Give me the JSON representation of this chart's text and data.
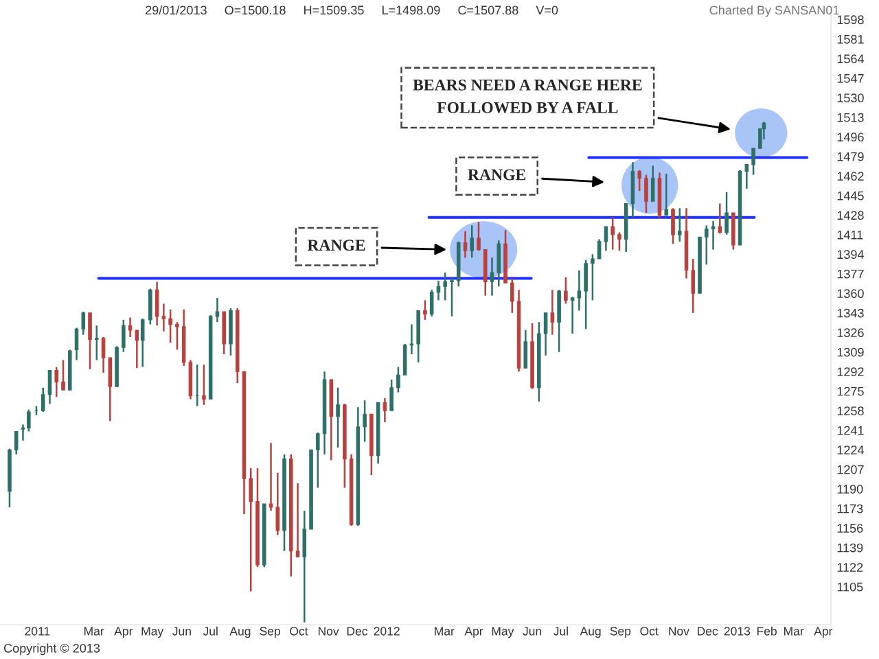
{
  "chart_data": {
    "type": "candlestick",
    "subtitle": "29/01/2013     O=1500.18     H=1509.35     L=1498.09     C=1507.88     V=0",
    "annotations": [
      "Charted By SANSAN01",
      "Copyright © 2013",
      "RANGE",
      "RANGE",
      "BEARS NEED A RANGE HERE\nFOLLOWED BY A FALL"
    ],
    "x": [
      "2010-12-03",
      "2010-12-10",
      "2010-12-17",
      "2010-12-23",
      "2010-12-31",
      "2011-01-07",
      "2011-01-14",
      "2011-01-21",
      "2011-01-28",
      "2011-02-04",
      "2011-02-11",
      "2011-02-18",
      "2011-02-25",
      "2011-03-04",
      "2011-03-11",
      "2011-03-18",
      "2011-03-25",
      "2011-04-01",
      "2011-04-08",
      "2011-04-15",
      "2011-04-21",
      "2011-04-29",
      "2011-05-06",
      "2011-05-13",
      "2011-05-20",
      "2011-05-27",
      "2011-06-03",
      "2011-06-10",
      "2011-06-17",
      "2011-06-24",
      "2011-07-01",
      "2011-07-08",
      "2011-07-15",
      "2011-07-22",
      "2011-07-29",
      "2011-08-05",
      "2011-08-12",
      "2011-08-19",
      "2011-08-26",
      "2011-09-02",
      "2011-09-09",
      "2011-09-16",
      "2011-09-23",
      "2011-09-30",
      "2011-10-07",
      "2011-10-14",
      "2011-10-21",
      "2011-10-28",
      "2011-11-04",
      "2011-11-11",
      "2011-11-18",
      "2011-11-25",
      "2011-12-02",
      "2011-12-09",
      "2011-12-16",
      "2011-12-23",
      "2011-12-30",
      "2012-01-06",
      "2012-01-13",
      "2012-01-20",
      "2012-01-27",
      "2012-02-03",
      "2012-02-10",
      "2012-02-17",
      "2012-02-24",
      "2012-03-02",
      "2012-03-09",
      "2012-03-16",
      "2012-03-23",
      "2012-03-30",
      "2012-04-06",
      "2012-04-13",
      "2012-04-20",
      "2012-04-27",
      "2012-05-04",
      "2012-05-11",
      "2012-05-18",
      "2012-05-25",
      "2012-06-01",
      "2012-06-08",
      "2012-06-15",
      "2012-06-22",
      "2012-06-29",
      "2012-07-06",
      "2012-07-13",
      "2012-07-20",
      "2012-07-27",
      "2012-08-03",
      "2012-08-10",
      "2012-08-17",
      "2012-08-24",
      "2012-08-31",
      "2012-09-07",
      "2012-09-14",
      "2012-09-21",
      "2012-09-28",
      "2012-10-05",
      "2012-10-12",
      "2012-10-19",
      "2012-10-26",
      "2012-11-02",
      "2012-11-09",
      "2012-11-16",
      "2012-11-23",
      "2012-11-30",
      "2012-12-07",
      "2012-12-14",
      "2012-12-21",
      "2012-12-28",
      "2013-01-04",
      "2013-01-11",
      "2013-01-18",
      "2013-01-25",
      "2013-01-29"
    ],
    "ohlc": [
      [
        1188,
        1225,
        1174,
        1224
      ],
      [
        1224,
        1240,
        1220,
        1240
      ],
      [
        1242,
        1246,
        1232,
        1243
      ],
      [
        1243,
        1259,
        1240,
        1257
      ],
      [
        1258,
        1262,
        1254,
        1258
      ],
      [
        1258,
        1278,
        1257,
        1272
      ],
      [
        1272,
        1293,
        1264,
        1293
      ],
      [
        1293,
        1296,
        1270,
        1283
      ],
      [
        1283,
        1302,
        1276,
        1276
      ],
      [
        1276,
        1311,
        1276,
        1310
      ],
      [
        1311,
        1330,
        1302,
        1329
      ],
      [
        1329,
        1344,
        1324,
        1343
      ],
      [
        1343,
        1343,
        1294,
        1320
      ],
      [
        1320,
        1332,
        1302,
        1321
      ],
      [
        1321,
        1322,
        1291,
        1304
      ],
      [
        1304,
        1304,
        1249,
        1279
      ],
      [
        1279,
        1314,
        1279,
        1313
      ],
      [
        1313,
        1337,
        1309,
        1332
      ],
      [
        1332,
        1339,
        1322,
        1328
      ],
      [
        1328,
        1328,
        1295,
        1319
      ],
      [
        1319,
        1338,
        1296,
        1337
      ],
      [
        1337,
        1364,
        1333,
        1363
      ],
      [
        1363,
        1370,
        1332,
        1340
      ],
      [
        1340,
        1351,
        1327,
        1338
      ],
      [
        1338,
        1346,
        1317,
        1333
      ],
      [
        1333,
        1335,
        1311,
        1331
      ],
      [
        1331,
        1346,
        1297,
        1300
      ],
      [
        1300,
        1302,
        1268,
        1271
      ],
      [
        1271,
        1298,
        1262,
        1271
      ],
      [
        1271,
        1298,
        1263,
        1268
      ],
      [
        1268,
        1341,
        1268,
        1340
      ],
      [
        1340,
        1356,
        1335,
        1344
      ],
      [
        1344,
        1344,
        1307,
        1316
      ],
      [
        1316,
        1347,
        1306,
        1345
      ],
      [
        1345,
        1347,
        1282,
        1292
      ],
      [
        1292,
        1292,
        1168,
        1199
      ],
      [
        1199,
        1208,
        1101,
        1179
      ],
      [
        1179,
        1208,
        1122,
        1124
      ],
      [
        1124,
        1177,
        1122,
        1177
      ],
      [
        1177,
        1230,
        1171,
        1174
      ],
      [
        1174,
        1204,
        1150,
        1154
      ],
      [
        1154,
        1220,
        1136,
        1216
      ],
      [
        1216,
        1220,
        1114,
        1136
      ],
      [
        1136,
        1195,
        1131,
        1131
      ],
      [
        1131,
        1171,
        1074,
        1155
      ],
      [
        1155,
        1224,
        1155,
        1224
      ],
      [
        1224,
        1239,
        1191,
        1238
      ],
      [
        1238,
        1292,
        1220,
        1285
      ],
      [
        1285,
        1285,
        1215,
        1253
      ],
      [
        1253,
        1278,
        1226,
        1263
      ],
      [
        1263,
        1264,
        1191,
        1216
      ],
      [
        1216,
        1220,
        1158,
        1159
      ],
      [
        1159,
        1261,
        1158,
        1244
      ],
      [
        1244,
        1267,
        1231,
        1255
      ],
      [
        1255,
        1255,
        1202,
        1219
      ],
      [
        1219,
        1265,
        1212,
        1265
      ],
      [
        1265,
        1269,
        1248,
        1258
      ],
      [
        1258,
        1285,
        1258,
        1278
      ],
      [
        1278,
        1296,
        1274,
        1289
      ],
      [
        1289,
        1316,
        1289,
        1315
      ],
      [
        1315,
        1333,
        1307,
        1316
      ],
      [
        1316,
        1345,
        1300,
        1345
      ],
      [
        1345,
        1354,
        1337,
        1342
      ],
      [
        1342,
        1363,
        1340,
        1361
      ],
      [
        1361,
        1371,
        1354,
        1366
      ],
      [
        1366,
        1378,
        1354,
        1370
      ],
      [
        1370,
        1374,
        1340,
        1371
      ],
      [
        1371,
        1405,
        1366,
        1404
      ],
      [
        1404,
        1414,
        1391,
        1397
      ],
      [
        1397,
        1419,
        1391,
        1408
      ],
      [
        1408,
        1422,
        1397,
        1398
      ],
      [
        1398,
        1398,
        1358,
        1370
      ],
      [
        1370,
        1391,
        1358,
        1378
      ],
      [
        1378,
        1406,
        1366,
        1403
      ],
      [
        1403,
        1415,
        1369,
        1369
      ],
      [
        1369,
        1373,
        1343,
        1353
      ],
      [
        1353,
        1363,
        1292,
        1295
      ],
      [
        1295,
        1328,
        1295,
        1318
      ],
      [
        1318,
        1334,
        1277,
        1278
      ],
      [
        1278,
        1335,
        1266,
        1325
      ],
      [
        1325,
        1343,
        1306,
        1343
      ],
      [
        1343,
        1363,
        1324,
        1335
      ],
      [
        1335,
        1363,
        1309,
        1362
      ],
      [
        1362,
        1374,
        1351,
        1354
      ],
      [
        1354,
        1357,
        1325,
        1356
      ],
      [
        1356,
        1380,
        1345,
        1362
      ],
      [
        1362,
        1389,
        1329,
        1386
      ],
      [
        1386,
        1394,
        1354,
        1390
      ],
      [
        1390,
        1407,
        1390,
        1405
      ],
      [
        1405,
        1418,
        1397,
        1418
      ],
      [
        1418,
        1426,
        1398,
        1411
      ],
      [
        1411,
        1413,
        1397,
        1407
      ],
      [
        1407,
        1438,
        1396,
        1438
      ],
      [
        1438,
        1474,
        1426,
        1466
      ],
      [
        1466,
        1467,
        1449,
        1460
      ],
      [
        1460,
        1463,
        1430,
        1440
      ],
      [
        1440,
        1471,
        1440,
        1460
      ],
      [
        1460,
        1465,
        1425,
        1428
      ],
      [
        1428,
        1464,
        1428,
        1433
      ],
      [
        1433,
        1434,
        1403,
        1411
      ],
      [
        1411,
        1434,
        1405,
        1414
      ],
      [
        1414,
        1434,
        1373,
        1380
      ],
      [
        1380,
        1390,
        1343,
        1360
      ],
      [
        1360,
        1409,
        1360,
        1409
      ],
      [
        1409,
        1419,
        1385,
        1416
      ],
      [
        1416,
        1423,
        1398,
        1418
      ],
      [
        1418,
        1438,
        1412,
        1413
      ],
      [
        1413,
        1448,
        1411,
        1430
      ],
      [
        1430,
        1430,
        1398,
        1402
      ],
      [
        1402,
        1467,
        1402,
        1466
      ],
      [
        1466,
        1472,
        1451,
        1472
      ],
      [
        1472,
        1486,
        1463,
        1486
      ],
      [
        1486,
        1503,
        1486,
        1503
      ],
      [
        1503,
        1509,
        1494,
        1508
      ]
    ],
    "colors": [
      "#2f6f6a",
      "#2f6f6a",
      "#2f6f6a",
      "#2f6f6a",
      "#2f6f6a",
      "#2f6f6a",
      "#2f6f6a",
      "#b8413f",
      "#b8413f",
      "#2f6f6a",
      "#2f6f6a",
      "#2f6f6a",
      "#b8413f",
      "#2f6f6a",
      "#b8413f",
      "#b8413f",
      "#2f6f6a",
      "#2f6f6a",
      "#b8413f",
      "#b8413f",
      "#2f6f6a",
      "#2f6f6a",
      "#b8413f",
      "#b8413f",
      "#b8413f",
      "#b8413f",
      "#b8413f",
      "#b8413f",
      "#2f6f6a",
      "#b8413f",
      "#2f6f6a",
      "#2f6f6a",
      "#b8413f",
      "#2f6f6a",
      "#b8413f",
      "#b8413f",
      "#b8413f",
      "#b8413f",
      "#2f6f6a",
      "#b8413f",
      "#b8413f",
      "#2f6f6a",
      "#b8413f",
      "#b8413f",
      "#2f6f6a",
      "#2f6f6a",
      "#2f6f6a",
      "#2f6f6a",
      "#b8413f",
      "#2f6f6a",
      "#b8413f",
      "#b8413f",
      "#2f6f6a",
      "#2f6f6a",
      "#b8413f",
      "#2f6f6a",
      "#b8413f",
      "#2f6f6a",
      "#2f6f6a",
      "#2f6f6a",
      "#2f6f6a",
      "#2f6f6a",
      "#b8413f",
      "#2f6f6a",
      "#2f6f6a",
      "#2f6f6a",
      "#2f6f6a",
      "#2f6f6a",
      "#b8413f",
      "#2f6f6a",
      "#b8413f",
      "#b8413f",
      "#2f6f6a",
      "#2f6f6a",
      "#b8413f",
      "#b8413f",
      "#b8413f",
      "#2f6f6a",
      "#b8413f",
      "#2f6f6a",
      "#2f6f6a",
      "#b8413f",
      "#2f6f6a",
      "#b8413f",
      "#2f6f6a",
      "#2f6f6a",
      "#2f6f6a",
      "#2f6f6a",
      "#2f6f6a",
      "#2f6f6a",
      "#b8413f",
      "#b8413f",
      "#2f6f6a",
      "#2f6f6a",
      "#b8413f",
      "#b8413f",
      "#2f6f6a",
      "#b8413f",
      "#2f6f6a",
      "#b8413f",
      "#2f6f6a",
      "#b8413f",
      "#b8413f",
      "#2f6f6a",
      "#2f6f6a",
      "#2f6f6a",
      "#b8413f",
      "#2f6f6a",
      "#b8413f",
      "#2f6f6a",
      "#2f6f6a",
      "#2f6f6a",
      "#2f6f6a",
      "#2f6f6a"
    ],
    "series": [
      {
        "type": "line",
        "color": "#1f2fff",
        "x": [
          "2011-03-06",
          "2012-05-31"
        ],
        "values": [
          1373,
          1373
        ]
      },
      {
        "type": "line",
        "color": "#1f2fff",
        "x": [
          "2012-02-14",
          "2013-01-19"
        ],
        "values": [
          1426,
          1426
        ]
      },
      {
        "type": "line",
        "color": "#1f2fff",
        "x": [
          "2012-07-30",
          "2013-03-15"
        ],
        "values": [
          1478,
          1478
        ]
      }
    ],
    "xlim": [
      "2010-11-23",
      "2013-04-09"
    ],
    "xticks": [
      {
        "value": "2011-01-01",
        "label": "2011"
      },
      {
        "value": "2011-03-01",
        "label": "Mar"
      },
      {
        "value": "2011-04-01",
        "label": "Apr"
      },
      {
        "value": "2011-05-01",
        "label": "May"
      },
      {
        "value": "2011-06-01",
        "label": "Jun"
      },
      {
        "value": "2011-07-01",
        "label": "Jul"
      },
      {
        "value": "2011-08-01",
        "label": "Aug"
      },
      {
        "value": "2011-09-01",
        "label": "Sep"
      },
      {
        "value": "2011-10-01",
        "label": "Oct"
      },
      {
        "value": "2011-11-01",
        "label": "Nov"
      },
      {
        "value": "2011-12-01",
        "label": "Dec"
      },
      {
        "value": "2012-01-01",
        "label": "2012"
      },
      {
        "value": "2012-03-01",
        "label": "Mar"
      },
      {
        "value": "2012-04-01",
        "label": "Apr"
      },
      {
        "value": "2012-05-01",
        "label": "May"
      },
      {
        "value": "2012-06-01",
        "label": "Jun"
      },
      {
        "value": "2012-07-01",
        "label": "Jul"
      },
      {
        "value": "2012-08-01",
        "label": "Aug"
      },
      {
        "value": "2012-09-01",
        "label": "Sep"
      },
      {
        "value": "2012-10-01",
        "label": "Oct"
      },
      {
        "value": "2012-11-01",
        "label": "Nov"
      },
      {
        "value": "2012-12-01",
        "label": "Dec"
      },
      {
        "value": "2013-01-01",
        "label": "2013"
      },
      {
        "value": "2013-02-01",
        "label": "Feb"
      },
      {
        "value": "2013-03-01",
        "label": "Mar"
      },
      {
        "value": "2013-04-01",
        "label": "Apr"
      }
    ],
    "ylim": [
      1072,
      1609
    ],
    "yticks": [
      1105,
      1122,
      1139,
      1156,
      1173,
      1190,
      1207,
      1224,
      1241,
      1258,
      1275,
      1292,
      1309,
      1326,
      1343,
      1360,
      1377,
      1394,
      1411,
      1428,
      1445,
      1462,
      1479,
      1496,
      1513,
      1530,
      1547,
      1564,
      1581,
      1598
    ]
  }
}
